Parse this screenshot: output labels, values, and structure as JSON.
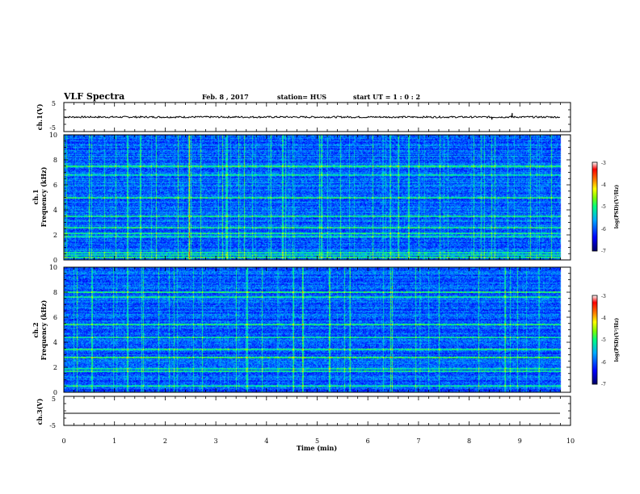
{
  "header": {
    "title": "VLF Spectra",
    "date": "Feb. 8 , 2017",
    "station": "station= HUS",
    "start": "start  UT =   1 : 0  : 2"
  },
  "chart_data": [
    {
      "type": "line",
      "ylabel": "ch.1(V)",
      "ylim": [
        -5,
        5
      ],
      "yticks": [
        "5",
        "-5"
      ],
      "baseline": 0,
      "spikes": [
        {
          "x": 8.85,
          "y": 1.4
        },
        {
          "x": 8.45,
          "y": -0.9
        }
      ]
    },
    {
      "type": "heatmap",
      "ylabel_lines": [
        "ch.1",
        "Frequency  (kHz)"
      ],
      "ylim": [
        0,
        10
      ],
      "yticks": [
        "0",
        "2",
        "4",
        "6",
        "8",
        "10"
      ],
      "xlim": [
        0,
        10
      ],
      "colorbar": {
        "label": "log(PSD)(V²/Hz)",
        "range": [
          -7,
          -3
        ],
        "ticks": [
          "-3",
          "-4",
          "-5",
          "-6",
          "-7"
        ],
        "colors": [
          "#000066",
          "#0000ff",
          "#00aaff",
          "#00ff80",
          "#80ff00",
          "#ffff00",
          "#ff8000",
          "#ff0000",
          "#ffffff"
        ]
      },
      "bright_lines_khz": [
        0.2,
        0.4,
        0.6,
        1.85,
        2.1,
        2.6,
        3.5,
        5.0,
        6.8,
        7.5
      ],
      "bright_times_min": [
        3.2,
        1.25,
        4.3,
        6.8,
        2.45
      ]
    },
    {
      "type": "heatmap",
      "ylabel_lines": [
        "ch.2",
        "Frequency  (kHz)"
      ],
      "ylim": [
        0,
        10
      ],
      "yticks": [
        "0",
        "2",
        "4",
        "6",
        "8",
        "10"
      ],
      "xlim": [
        0,
        10
      ],
      "colorbar": {
        "label": "log(PSD)(V²/Hz)",
        "range": [
          -7,
          -3
        ],
        "ticks": [
          "-3",
          "-4",
          "-5",
          "-6",
          "-7"
        ],
        "colors": [
          "#000066",
          "#0000ff",
          "#00aaff",
          "#00ff80",
          "#80ff00",
          "#ffff00",
          "#ff8000",
          "#ff0000",
          "#ffffff"
        ]
      },
      "bright_lines_khz": [
        0.5,
        1.7,
        1.9,
        2.8,
        3.4,
        4.4,
        5.4,
        7.6,
        8.0
      ],
      "bright_times_min": [
        4.7,
        0.55,
        3.6,
        1.25
      ]
    },
    {
      "type": "line",
      "ylabel": "ch.3(V)",
      "ylim": [
        -5,
        5
      ],
      "yticks": [
        "5",
        "-5"
      ],
      "baseline": 0,
      "xlabel": "Time  (min)",
      "xlim": [
        0,
        10
      ],
      "xticks": [
        "0",
        "1",
        "2",
        "3",
        "4",
        "5",
        "6",
        "7",
        "8",
        "9",
        "10"
      ]
    }
  ]
}
